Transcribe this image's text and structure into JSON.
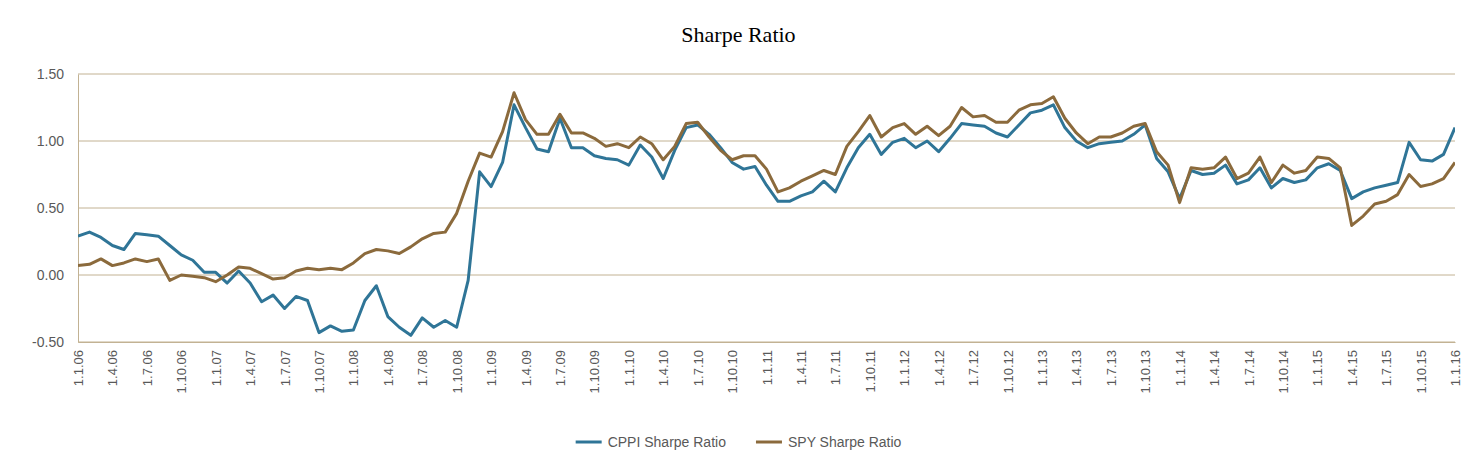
{
  "chart_data": {
    "type": "line",
    "title": "Sharpe Ratio",
    "categories": [
      "1.1.06",
      null,
      null,
      "1.4.06",
      null,
      null,
      "1.7.06",
      null,
      null,
      "1.10.06",
      null,
      null,
      "1.1.07",
      null,
      null,
      "1.4.07",
      null,
      null,
      "1.7.07",
      null,
      null,
      "1.10.07",
      null,
      null,
      "1.1.08",
      null,
      null,
      "1.4.08",
      null,
      null,
      "1.7.08",
      null,
      null,
      "1.10.08",
      null,
      null,
      "1.1.09",
      null,
      null,
      "1.4.09",
      null,
      null,
      "1.7.09",
      null,
      null,
      "1.10.09",
      null,
      null,
      "1.1.10",
      null,
      null,
      "1.4.10",
      null,
      null,
      "1.7.10",
      null,
      null,
      "1.10.10",
      null,
      null,
      "1.1.11",
      null,
      null,
      "1.4.11",
      null,
      null,
      "1.7.11",
      null,
      null,
      "1.10.11",
      null,
      null,
      "1.1.12",
      null,
      null,
      "1.4.12",
      null,
      null,
      "1.7.12",
      null,
      null,
      "1.10.12",
      null,
      null,
      "1.1.13",
      null,
      null,
      "1.4.13",
      null,
      null,
      "1.7.13",
      null,
      null,
      "1.10.13",
      null,
      null,
      "1.1.14",
      null,
      null,
      "1.4.14",
      null,
      null,
      "1.7.14",
      null,
      null,
      "1.10.14",
      null,
      null,
      "1.1.15",
      null,
      null,
      "1.4.15",
      null,
      null,
      "1.7.15",
      null,
      null,
      "1.10.15",
      null,
      null,
      "1.1.16"
    ],
    "series": [
      {
        "name": "CPPI Sharpe Ratio",
        "color": "#2f7597",
        "values": [
          0.29,
          0.32,
          0.28,
          0.22,
          0.19,
          0.31,
          0.3,
          0.29,
          0.22,
          0.15,
          0.11,
          0.02,
          0.02,
          -0.06,
          0.03,
          -0.06,
          -0.2,
          -0.15,
          -0.25,
          -0.16,
          -0.19,
          -0.43,
          -0.38,
          -0.42,
          -0.41,
          -0.19,
          -0.08,
          -0.31,
          -0.39,
          -0.45,
          -0.32,
          -0.39,
          -0.34,
          -0.39,
          -0.04,
          0.77,
          0.66,
          0.84,
          1.27,
          1.1,
          0.94,
          0.92,
          1.17,
          0.95,
          0.95,
          0.89,
          0.87,
          0.86,
          0.82,
          0.97,
          0.88,
          0.72,
          0.93,
          1.1,
          1.12,
          1.05,
          0.95,
          0.84,
          0.79,
          0.81,
          0.67,
          0.55,
          0.55,
          0.59,
          0.62,
          0.7,
          0.62,
          0.8,
          0.95,
          1.05,
          0.9,
          0.99,
          1.02,
          0.95,
          1.0,
          0.92,
          1.02,
          1.13,
          1.12,
          1.11,
          1.06,
          1.03,
          1.12,
          1.21,
          1.23,
          1.27,
          1.1,
          1.0,
          0.95,
          0.98,
          0.99,
          1.0,
          1.05,
          1.12,
          0.87,
          0.77,
          0.57,
          0.78,
          0.75,
          0.76,
          0.82,
          0.68,
          0.71,
          0.8,
          0.65,
          0.72,
          0.69,
          0.71,
          0.8,
          0.83,
          0.78,
          0.57,
          0.62,
          0.65,
          0.67,
          0.69,
          0.99,
          0.86,
          0.85,
          0.9,
          1.1
        ]
      },
      {
        "name": "SPY Sharpe Ratio",
        "color": "#8b6a3c",
        "values": [
          0.07,
          0.08,
          0.12,
          0.07,
          0.09,
          0.12,
          0.1,
          0.12,
          -0.04,
          0.0,
          -0.01,
          -0.02,
          -0.05,
          0.0,
          0.06,
          0.05,
          0.01,
          -0.03,
          -0.02,
          0.03,
          0.05,
          0.04,
          0.05,
          0.04,
          0.09,
          0.16,
          0.19,
          0.18,
          0.16,
          0.21,
          0.27,
          0.31,
          0.32,
          0.46,
          0.7,
          0.91,
          0.88,
          1.07,
          1.36,
          1.16,
          1.05,
          1.05,
          1.2,
          1.06,
          1.06,
          1.02,
          0.96,
          0.98,
          0.95,
          1.03,
          0.98,
          0.86,
          0.96,
          1.13,
          1.14,
          1.03,
          0.93,
          0.86,
          0.89,
          0.89,
          0.79,
          0.62,
          0.65,
          0.7,
          0.74,
          0.78,
          0.75,
          0.96,
          1.07,
          1.19,
          1.03,
          1.1,
          1.13,
          1.05,
          1.11,
          1.04,
          1.11,
          1.25,
          1.18,
          1.19,
          1.14,
          1.14,
          1.23,
          1.27,
          1.28,
          1.33,
          1.17,
          1.06,
          0.98,
          1.03,
          1.03,
          1.06,
          1.11,
          1.13,
          0.92,
          0.82,
          0.54,
          0.8,
          0.79,
          0.8,
          0.88,
          0.72,
          0.76,
          0.88,
          0.69,
          0.82,
          0.76,
          0.78,
          0.88,
          0.87,
          0.8,
          0.37,
          0.44,
          0.53,
          0.55,
          0.6,
          0.75,
          0.66,
          0.68,
          0.72,
          0.84
        ]
      }
    ],
    "ylim": [
      -0.5,
      1.5
    ],
    "yticks": [
      {
        "value": -0.5,
        "label": "-0.50"
      },
      {
        "value": 0,
        "label": "0.00"
      },
      {
        "value": 0.5,
        "label": "0.50"
      },
      {
        "value": 1,
        "label": "1.00"
      },
      {
        "value": 1.5,
        "label": "1.50"
      }
    ],
    "grid": true,
    "legend": "bottom"
  }
}
